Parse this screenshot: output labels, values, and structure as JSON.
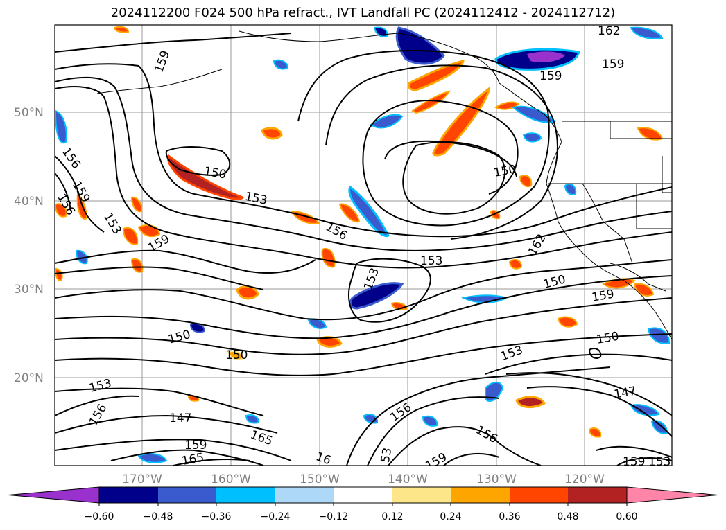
{
  "title": "2024112200 F024 500 hPa refract., IVT Landfall PC (2024112412 - 2024112712)",
  "lat_labels": [
    "50°N",
    "40°N",
    "30°N",
    "20°N"
  ],
  "lon_labels": [
    "170°W",
    "160°W",
    "150°W",
    "140°W",
    "130°W",
    "120°W"
  ],
  "contour_labels": [
    "162",
    "159",
    "159",
    "159",
    "156",
    "159",
    "156",
    "150",
    "153",
    "153",
    "156",
    "150",
    "162",
    "159",
    "153",
    "153",
    "150",
    "159",
    "150",
    "150",
    "153",
    "150",
    "153",
    "147",
    "156",
    "147",
    "156",
    "156",
    "165",
    "159",
    "165",
    "53",
    "159",
    "159",
    "153",
    "16"
  ],
  "colorbar": {
    "ticks": [
      "−0.60",
      "−0.48",
      "−0.36",
      "−0.24",
      "−0.12",
      "0.12",
      "0.24",
      "0.36",
      "0.48",
      "0.60"
    ],
    "colors": [
      "#9932cc",
      "#00008b",
      "#3a5bcd",
      "#00bfff",
      "#add8f8",
      "#ffffff",
      "#fde68a",
      "#ffa500",
      "#ff4500",
      "#b22222",
      "#ff85a8"
    ]
  }
}
